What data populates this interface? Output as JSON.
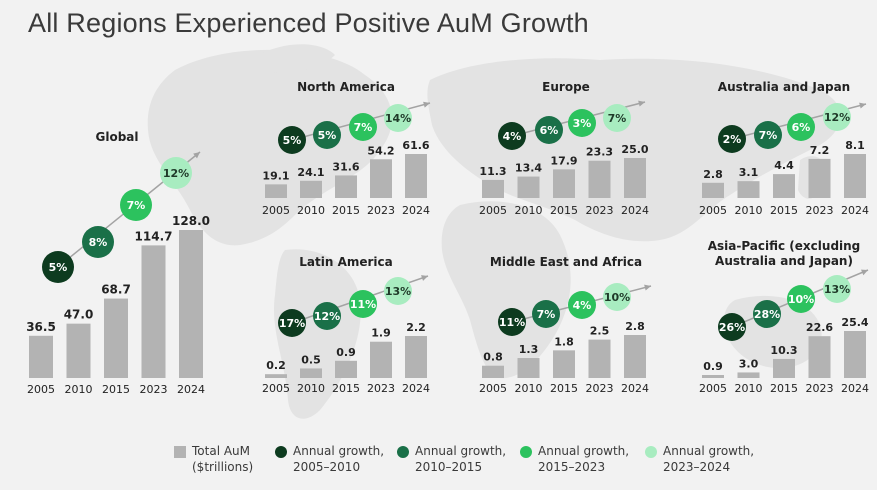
{
  "title": "All Regions Experienced Positive AuM Growth",
  "colors": {
    "background": "#f2f2f2",
    "map": "#e3e3e3",
    "bar": "#b3b3b3",
    "growth_2005_2010": "#0d3b1f",
    "growth_2010_2015": "#1a7048",
    "growth_2015_2023": "#2cc25e",
    "growth_2023_2024": "#a8ecc0"
  },
  "legend": {
    "bars": {
      "line1": "Total AuM",
      "line2": "($trillions)"
    },
    "g1": {
      "line1": "Annual growth,",
      "line2": "2005–2010"
    },
    "g2": {
      "line1": "Annual growth,",
      "line2": "2010–2015"
    },
    "g3": {
      "line1": "Annual growth,",
      "line2": "2015–2023"
    },
    "g4": {
      "line1": "Annual growth,",
      "line2": "2023–2024"
    }
  },
  "chart_data": [
    {
      "type": "bar",
      "title": "Global",
      "unit": "$trillions",
      "categories": [
        "2005",
        "2010",
        "2015",
        "2023",
        "2024"
      ],
      "values": [
        36.5,
        47.0,
        68.7,
        114.7,
        128.0
      ],
      "value_labels": [
        "36.5",
        "47.0",
        "68.7",
        "114.7",
        "128.0"
      ],
      "growth_rates": [
        "5%",
        "8%",
        "7%",
        "12%"
      ]
    },
    {
      "type": "bar",
      "title": "North America",
      "unit": "$trillions",
      "categories": [
        "2005",
        "2010",
        "2015",
        "2023",
        "2024"
      ],
      "values": [
        19.1,
        24.1,
        31.6,
        54.2,
        61.6
      ],
      "value_labels": [
        "19.1",
        "24.1",
        "31.6",
        "54.2",
        "61.6"
      ],
      "growth_rates": [
        "5%",
        "5%",
        "7%",
        "14%"
      ]
    },
    {
      "type": "bar",
      "title": "Europe",
      "unit": "$trillions",
      "categories": [
        "2005",
        "2010",
        "2015",
        "2023",
        "2024"
      ],
      "values": [
        11.3,
        13.4,
        17.9,
        23.3,
        25.0
      ],
      "value_labels": [
        "11.3",
        "13.4",
        "17.9",
        "23.3",
        "25.0"
      ],
      "growth_rates": [
        "4%",
        "6%",
        "3%",
        "7%"
      ]
    },
    {
      "type": "bar",
      "title": "Australia and Japan",
      "unit": "$trillions",
      "categories": [
        "2005",
        "2010",
        "2015",
        "2023",
        "2024"
      ],
      "values": [
        2.8,
        3.1,
        4.4,
        7.2,
        8.1
      ],
      "value_labels": [
        "2.8",
        "3.1",
        "4.4",
        "7.2",
        "8.1"
      ],
      "growth_rates": [
        "2%",
        "7%",
        "6%",
        "12%"
      ]
    },
    {
      "type": "bar",
      "title": "Latin America",
      "unit": "$trillions",
      "categories": [
        "2005",
        "2010",
        "2015",
        "2023",
        "2024"
      ],
      "values": [
        0.2,
        0.5,
        0.9,
        1.9,
        2.2
      ],
      "value_labels": [
        "0.2",
        "0.5",
        "0.9",
        "1.9",
        "2.2"
      ],
      "growth_rates": [
        "17%",
        "12%",
        "11%",
        "13%"
      ]
    },
    {
      "type": "bar",
      "title": "Middle East and Africa",
      "unit": "$trillions",
      "categories": [
        "2005",
        "2010",
        "2015",
        "2023",
        "2024"
      ],
      "values": [
        0.8,
        1.3,
        1.8,
        2.5,
        2.8
      ],
      "value_labels": [
        "0.8",
        "1.3",
        "1.8",
        "2.5",
        "2.8"
      ],
      "growth_rates": [
        "11%",
        "7%",
        "4%",
        "10%"
      ]
    },
    {
      "type": "bar",
      "title": "Asia-Pacific (excluding Australia and Japan)",
      "title_lines": [
        "Asia-Pacific (excluding",
        "Australia and Japan)"
      ],
      "unit": "$trillions",
      "categories": [
        "2005",
        "2010",
        "2015",
        "2023",
        "2024"
      ],
      "values": [
        0.9,
        3.0,
        10.3,
        22.6,
        25.4
      ],
      "value_labels": [
        "0.9",
        "3.0",
        "10.3",
        "22.6",
        "25.4"
      ],
      "growth_rates": [
        "26%",
        "28%",
        "10%",
        "13%"
      ]
    }
  ]
}
